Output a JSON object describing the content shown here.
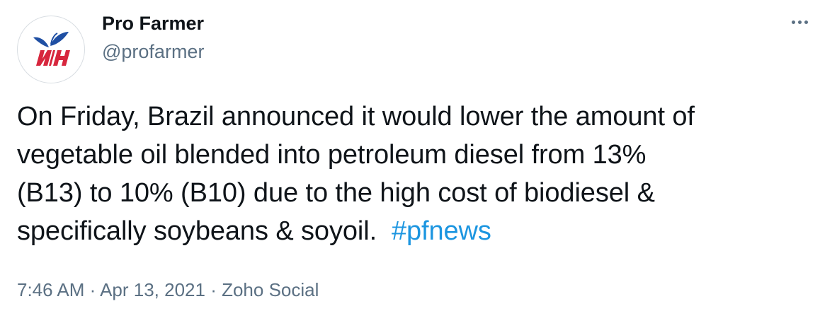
{
  "author": {
    "display_name": "Pro Farmer",
    "handle": "@profarmer",
    "avatar_icon": "pro-farmer-logo-icon"
  },
  "more_icon": "more-horizontal-icon",
  "tweet": {
    "lines": [
      "On Friday, Brazil announced it would lower the amount of",
      "vegetable oil blended into petroleum diesel from 13%",
      "(B13) to 10% (B10) due to the high cost of biodiesel &",
      "specifically soybeans & soyoil. "
    ],
    "hashtag": "#pfnews"
  },
  "meta": {
    "time": "7:46 AM",
    "separator": " · ",
    "date": "Apr 13, 2021",
    "source": "Zoho Social"
  },
  "colors": {
    "text": "#0f1419",
    "secondary": "#5b7083",
    "link": "#1b95e0",
    "logo_red": "#d7263d",
    "logo_blue": "#1f4fa3"
  }
}
